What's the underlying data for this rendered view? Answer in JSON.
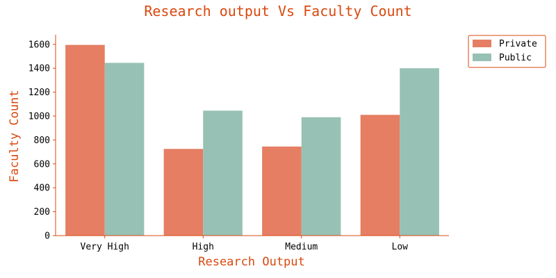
{
  "colors": {
    "accent": "#d9480f",
    "private": "#e57e63",
    "public": "#97c1b4",
    "axis": "#d9480f",
    "tick_text": "#000000"
  },
  "chart_data": {
    "type": "bar",
    "title": "Research output Vs Faculty Count",
    "xlabel": "Research Output",
    "ylabel": "Faculty Count",
    "categories": [
      "Very High",
      "High",
      "Medium",
      "Low"
    ],
    "series": [
      {
        "name": "Private",
        "values": [
          1595,
          725,
          745,
          1010
        ]
      },
      {
        "name": "Public",
        "values": [
          1445,
          1045,
          990,
          1400
        ]
      }
    ],
    "ylim": [
      0,
      1680
    ],
    "yticks": [
      0,
      200,
      400,
      600,
      800,
      1000,
      1200,
      1400,
      1600
    ],
    "grid": false,
    "legend": "outside-top-right"
  }
}
